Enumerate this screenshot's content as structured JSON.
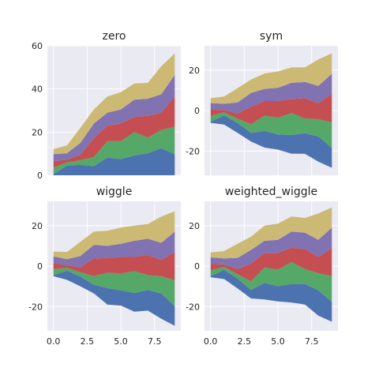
{
  "colors": [
    "#4C72B0",
    "#55A868",
    "#C44E52",
    "#8172B2",
    "#CCB974"
  ],
  "chart_data": [
    {
      "type": "area",
      "title": "zero",
      "x": [
        0,
        1,
        2,
        3,
        4,
        5,
        6,
        7,
        8,
        9
      ],
      "xlim": [
        -0.45,
        9.45
      ],
      "ylim": [
        0,
        60
      ],
      "xticks": [],
      "yticks": [
        0,
        20,
        40,
        60
      ],
      "grid": true,
      "boundaries": [
        [
          0,
          0,
          0,
          0,
          0,
          0,
          0,
          0,
          0,
          0
        ],
        [
          0.5,
          4.5,
          4.8,
          4.2,
          8.2,
          7.5,
          9.2,
          10.2,
          12.5,
          9.8
        ],
        [
          3.5,
          6.0,
          7.0,
          8.5,
          15.8,
          15.8,
          20.0,
          17.5,
          21.0,
          22.5
        ],
        [
          6.5,
          7.2,
          9.5,
          17.2,
          23.0,
          24.0,
          27.0,
          27.5,
          29.0,
          36.5
        ],
        [
          9.8,
          10.2,
          15.0,
          24.0,
          29.0,
          30.5,
          35.0,
          35.5,
          37.5,
          46.5
        ],
        [
          12.2,
          13.8,
          22.0,
          30.5,
          36.5,
          38.5,
          42.5,
          42.8,
          50.5,
          56.5
        ]
      ]
    },
    {
      "type": "area",
      "title": "sym",
      "x": [
        0,
        1,
        2,
        3,
        4,
        5,
        6,
        7,
        8,
        9
      ],
      "xlim": [
        -0.45,
        9.45
      ],
      "ylim": [
        -32,
        32
      ],
      "xticks": [],
      "yticks": [
        -20,
        0,
        20
      ],
      "grid": true,
      "boundaries": [
        [
          -6.1,
          -6.9,
          -11.0,
          -15.3,
          -18.3,
          -19.3,
          -21.3,
          -21.4,
          -25.3,
          -28.3
        ],
        [
          -5.6,
          -2.4,
          -6.2,
          -11.1,
          -10.1,
          -11.8,
          -12.1,
          -11.2,
          -12.8,
          -18.5
        ],
        [
          -2.6,
          -0.9,
          -4.0,
          -6.8,
          -2.5,
          -3.5,
          -1.3,
          -3.9,
          -4.3,
          -5.8
        ],
        [
          0.4,
          0.3,
          -1.5,
          1.9,
          4.7,
          4.7,
          5.7,
          6.1,
          3.7,
          8.2
        ],
        [
          3.7,
          3.3,
          4.0,
          8.7,
          10.7,
          11.2,
          13.7,
          14.1,
          12.2,
          18.2
        ],
        [
          6.1,
          6.9,
          11.0,
          15.3,
          18.3,
          19.3,
          21.3,
          21.4,
          25.3,
          28.3
        ]
      ]
    },
    {
      "type": "area",
      "title": "wiggle",
      "x": [
        0,
        1,
        2,
        3,
        4,
        5,
        6,
        7,
        8,
        9
      ],
      "xlim": [
        -0.45,
        9.45
      ],
      "ylim": [
        -32,
        32
      ],
      "xticks": [
        0.0,
        2.5,
        5.0,
        7.5
      ],
      "xticklabels": [
        "0.0",
        "2.5",
        "5.0",
        "7.5"
      ],
      "yticks": [
        -20,
        0,
        20
      ],
      "grid": true,
      "boundaries": [
        [
          -5.0,
          -6.8,
          -10.0,
          -13.5,
          -19.0,
          -19.5,
          -22.5,
          -22.0,
          -26.0,
          -29.5
        ],
        [
          -4.5,
          -2.3,
          -5.2,
          -9.3,
          -10.8,
          -12.0,
          -13.3,
          -11.8,
          -13.5,
          -19.7
        ],
        [
          -1.5,
          -0.8,
          -3.0,
          -5.0,
          -3.2,
          -3.7,
          -2.5,
          -4.5,
          -5.0,
          -7.0
        ],
        [
          1.5,
          0.4,
          -0.5,
          3.7,
          4.0,
          4.5,
          4.5,
          5.5,
          3.0,
          7.0
        ],
        [
          4.8,
          3.4,
          5.0,
          10.5,
          10.0,
          11.0,
          12.5,
          13.5,
          11.5,
          17.0
        ],
        [
          7.2,
          7.0,
          12.0,
          17.0,
          17.5,
          19.0,
          20.0,
          20.8,
          24.5,
          27.0
        ]
      ]
    },
    {
      "type": "area",
      "title": "weighted_wiggle",
      "x": [
        0,
        1,
        2,
        3,
        4,
        5,
        6,
        7,
        8,
        9
      ],
      "xlim": [
        -0.45,
        9.45
      ],
      "ylim": [
        -32,
        32
      ],
      "xticks": [
        0.0,
        2.5,
        5.0,
        7.5
      ],
      "xticklabels": [
        "0.0",
        "2.5",
        "5.0",
        "7.5"
      ],
      "yticks": [
        -20,
        0,
        20
      ],
      "grid": true,
      "boundaries": [
        [
          -5.5,
          -6.4,
          -11.0,
          -16.0,
          -16.5,
          -17.5,
          -18.0,
          -19.0,
          -24.5,
          -27.5
        ],
        [
          -5.0,
          -1.9,
          -6.2,
          -11.8,
          -8.3,
          -10.0,
          -8.8,
          -8.8,
          -12.0,
          -17.7
        ],
        [
          -2.0,
          -0.4,
          -4.0,
          -7.5,
          -0.7,
          -1.7,
          2.0,
          -1.5,
          -3.5,
          -5.0
        ],
        [
          1.0,
          0.8,
          -1.5,
          1.2,
          6.5,
          6.5,
          9.0,
          8.5,
          4.5,
          9.0
        ],
        [
          4.3,
          3.8,
          4.0,
          8.0,
          12.5,
          13.0,
          17.0,
          16.5,
          13.0,
          19.0
        ],
        [
          6.7,
          7.4,
          11.0,
          14.5,
          20.0,
          21.0,
          24.5,
          23.8,
          26.0,
          29.0
        ]
      ]
    }
  ]
}
